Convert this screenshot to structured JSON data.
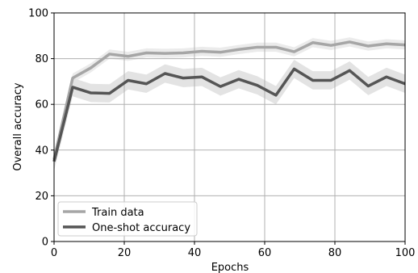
{
  "chart_data": {
    "type": "line",
    "xlabel": "Epochs",
    "ylabel": "Overall accuracy",
    "xlim": [
      0,
      100
    ],
    "ylim": [
      0,
      100
    ],
    "xticks": [
      0,
      20,
      40,
      60,
      80,
      100
    ],
    "yticks": [
      0,
      20,
      40,
      60,
      80,
      100
    ],
    "grid": true,
    "legend_position": "lower-left",
    "x": [
      0,
      5.3,
      10.5,
      15.8,
      21.1,
      26.3,
      31.6,
      36.8,
      42.1,
      47.4,
      52.6,
      57.9,
      63.2,
      68.4,
      73.7,
      78.9,
      84.2,
      89.5,
      94.7,
      100
    ],
    "series": [
      {
        "name": "Train data",
        "color": "#a6a6a6",
        "band_color": "#ebebeb",
        "values": [
          36,
          71.5,
          76,
          82,
          81,
          82.5,
          82.3,
          82.5,
          83.2,
          82.8,
          84,
          85,
          85,
          83,
          87,
          85.8,
          87.3,
          85.5,
          86.5,
          86
        ],
        "band": 2
      },
      {
        "name": "One-shot accuracy",
        "color": "#555555",
        "band_color": "#e3e3e3",
        "values": [
          35,
          67.5,
          65,
          64.8,
          70.5,
          69,
          73.5,
          71.5,
          72,
          67.8,
          71,
          68.3,
          64,
          75.5,
          70.5,
          70.5,
          74.8,
          68,
          72,
          69
        ],
        "band": 4
      }
    ]
  }
}
